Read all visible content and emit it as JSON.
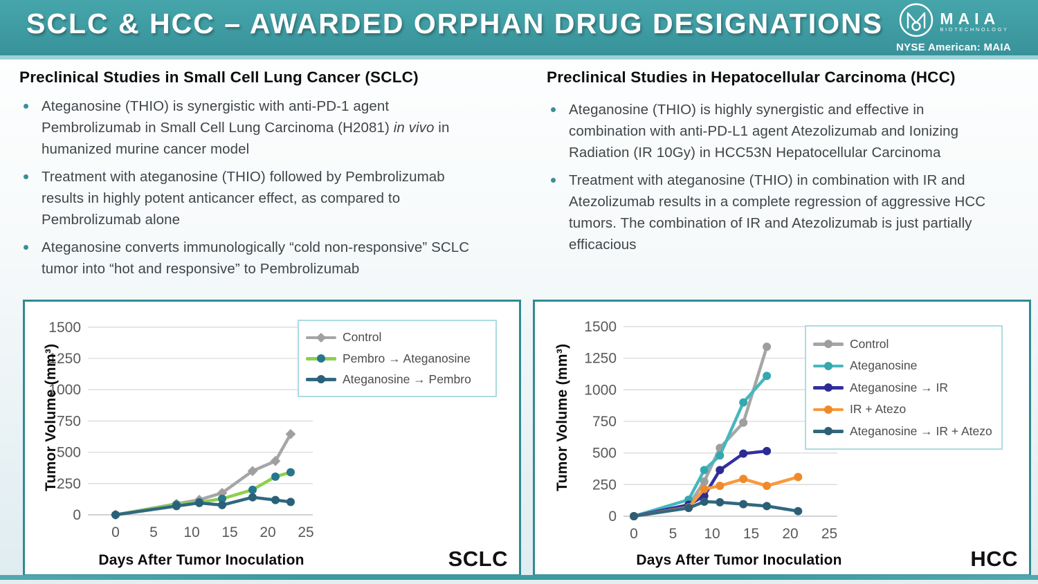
{
  "header": {
    "title": "SCLC & HCC – AWARDED ORPHAN DRUG DESIGNATIONS",
    "logo": {
      "name": "MAIA",
      "subtitle": "BIOTECHNOLOGY"
    },
    "ticker": "NYSE American: MAIA"
  },
  "panels": {
    "left": {
      "heading": "Preclinical Studies in Small Cell Lung Cancer (SCLC)",
      "bullets": [
        {
          "segments": [
            {
              "text": "Ateganosine (THIO) is synergistic with anti-PD-1 agent Pembrolizumab in Small Cell Lung Carcinoma (H2081) "
            },
            {
              "text": "in vivo",
              "italic": true
            },
            {
              "text": " in humanized murine cancer model"
            }
          ]
        },
        {
          "segments": [
            {
              "text": "Treatment with ateganosine (THIO) followed by Pembrolizumab results in highly potent anticancer effect, as compared to Pembrolizumab alone"
            }
          ]
        },
        {
          "segments": [
            {
              "text": "Ateganosine converts immunologically “cold non-responsive” SCLC tumor into “hot and responsive” to Pembrolizumab"
            }
          ]
        }
      ]
    },
    "right": {
      "heading": "Preclinical Studies in Hepatocellular Carcinoma (HCC)",
      "bullets": [
        {
          "segments": [
            {
              "text": "Ateganosine (THIO) is highly synergistic and effective in combination with anti-PD-L1 agent Atezolizumab and Ionizing Radiation (IR 10Gy) in HCC53N Hepatocellular Carcinoma"
            }
          ]
        },
        {
          "segments": [
            {
              "text": "Treatment with ateganosine (THIO) in combination with IR and Atezolizumab results in a complete regression of aggressive HCC tumors. The combination of IR and Atezolizumab is just partially efficacious"
            }
          ]
        }
      ]
    }
  },
  "chart_data": [
    {
      "type": "line",
      "corner_label": "SCLC",
      "xlabel": "Days After Tumor Inoculation",
      "ylabel": "Tumor Volume (mm³)",
      "xlim": [
        0,
        26
      ],
      "ylim": [
        0,
        1500
      ],
      "x_ticks": [
        0,
        5,
        10,
        15,
        20,
        25
      ],
      "y_ticks": [
        0,
        250,
        500,
        750,
        1000,
        1250,
        1500
      ],
      "grid": true,
      "legend_position": "top-right",
      "series": [
        {
          "name": "Control",
          "color": "#a6a6a6",
          "marker_color": "#a0a0a0",
          "marker": "diamond",
          "x": [
            0,
            8,
            11,
            14,
            18,
            21,
            23
          ],
          "values": [
            0,
            87,
            120,
            175,
            350,
            430,
            645
          ]
        },
        {
          "name": "Pembro → Ateganosine",
          "color": "#8dd04c",
          "marker_color": "#26778c",
          "marker": "circle",
          "x": [
            0,
            8,
            11,
            14,
            18,
            21,
            23
          ],
          "values": [
            0,
            82,
            100,
            128,
            200,
            305,
            340
          ]
        },
        {
          "name": "Ateganosine → Pembro",
          "color": "#31697e",
          "marker_color": "#2b6178",
          "marker": "circle",
          "x": [
            0,
            8,
            11,
            14,
            18,
            21,
            23
          ],
          "values": [
            0,
            70,
            95,
            78,
            140,
            118,
            103
          ]
        }
      ]
    },
    {
      "type": "line",
      "corner_label": "HCC",
      "xlabel": "Days After Tumor Inoculation",
      "ylabel": "Tumor Volume (mm³)",
      "xlim": [
        0,
        26
      ],
      "ylim": [
        0,
        1500
      ],
      "x_ticks": [
        0,
        5,
        10,
        15,
        20,
        25
      ],
      "y_ticks": [
        0,
        250,
        500,
        750,
        1000,
        1250,
        1500
      ],
      "grid": true,
      "legend_position": "top-right",
      "series": [
        {
          "name": "Control",
          "color": "#a6a6a6",
          "marker_color": "#9e9e9e",
          "marker": "circle",
          "x": [
            0,
            7,
            9,
            11,
            14,
            17
          ],
          "values": [
            0,
            85,
            275,
            540,
            740,
            1340
          ]
        },
        {
          "name": "Ateganosine",
          "color": "#45b8be",
          "marker_color": "#35a8ae",
          "marker": "circle",
          "x": [
            0,
            7,
            9,
            11,
            14,
            17
          ],
          "values": [
            0,
            130,
            365,
            480,
            900,
            1110
          ]
        },
        {
          "name": "Ateganosine → IR",
          "color": "#33309f",
          "marker_color": "#2d2a92",
          "marker": "circle",
          "x": [
            0,
            7,
            9,
            11,
            14,
            17
          ],
          "values": [
            0,
            90,
            160,
            365,
            495,
            515
          ]
        },
        {
          "name": "IR + Atezo",
          "color": "#f89a3c",
          "marker_color": "#ee8a2b",
          "marker": "circle",
          "x": [
            0,
            7,
            9,
            11,
            14,
            17,
            21
          ],
          "values": [
            0,
            70,
            215,
            240,
            295,
            240,
            310
          ]
        },
        {
          "name": "Ateganosine → IR + Atezo",
          "color": "#31687f",
          "marker_color": "#2c5f76",
          "marker": "circle",
          "x": [
            0,
            7,
            9,
            11,
            14,
            17,
            21
          ],
          "values": [
            0,
            65,
            115,
            110,
            95,
            80,
            40
          ]
        }
      ]
    }
  ],
  "colors": {
    "header_teal": "#3d9aa1",
    "box_border": "#2f8b92",
    "grid_line": "#d9d9d9",
    "tick_text": "#595959"
  }
}
